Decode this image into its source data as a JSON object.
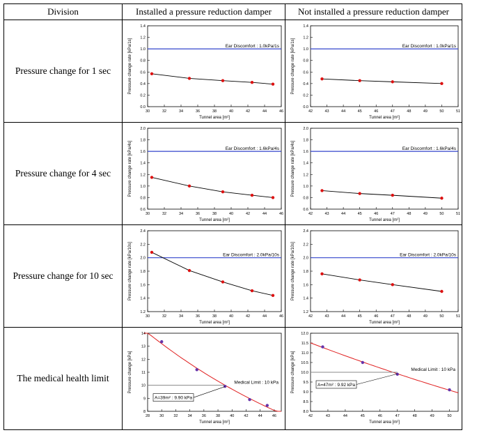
{
  "table": {
    "headers": [
      "Division",
      "Installed a pressure reduction damper",
      "Not installed a pressure reduction damper"
    ],
    "rows": [
      "Pressure change for 1 sec",
      "Pressure change for 4 sec",
      "Pressure change for 10 sec",
      "The medical health limit"
    ]
  },
  "chart_data": [
    {
      "id": "r1c1",
      "type": "scatter",
      "xlabel": "Tunnel area [m²]",
      "ylabel": "Pressure change rate [kPa/1s]",
      "xlim": [
        30,
        46
      ],
      "ylim": [
        0.0,
        1.4
      ],
      "xticks": [
        30,
        32,
        34,
        36,
        38,
        40,
        42,
        44,
        46
      ],
      "yticks": [
        0.0,
        0.2,
        0.4,
        0.6,
        0.8,
        1.0,
        1.2,
        1.4
      ],
      "x": [
        30.5,
        35.0,
        39.0,
        42.5,
        45.0
      ],
      "y": [
        0.57,
        0.49,
        0.45,
        0.42,
        0.39
      ],
      "limit": 1.0,
      "limit_label": "Ear Discomfort : 1.0kPa/1s"
    },
    {
      "id": "r1c2",
      "type": "scatter",
      "xlabel": "Tunnel area [m²]",
      "ylabel": "Pressure change rate [kPa/1s]",
      "xlim": [
        42,
        51
      ],
      "ylim": [
        0.0,
        1.4
      ],
      "xticks": [
        42,
        43,
        44,
        45,
        46,
        47,
        48,
        49,
        50,
        51
      ],
      "yticks": [
        0.0,
        0.2,
        0.4,
        0.6,
        0.8,
        1.0,
        1.2,
        1.4
      ],
      "x": [
        42.7,
        45.0,
        47.0,
        50.0
      ],
      "y": [
        0.48,
        0.45,
        0.43,
        0.4
      ],
      "limit": 1.0,
      "limit_label": "Ear Discomfort : 1.0kPa/1s"
    },
    {
      "id": "r2c1",
      "type": "scatter",
      "xlabel": "Tunnel area [m²]",
      "ylabel": "Pressure change rate [kPa/4s]",
      "xlim": [
        30,
        46
      ],
      "ylim": [
        0.6,
        2.0
      ],
      "xticks": [
        30,
        32,
        34,
        36,
        38,
        40,
        42,
        44,
        46
      ],
      "yticks": [
        0.6,
        0.8,
        1.0,
        1.2,
        1.4,
        1.6,
        1.8,
        2.0
      ],
      "x": [
        30.5,
        35.0,
        39.0,
        42.5,
        45.0
      ],
      "y": [
        1.15,
        1.0,
        0.9,
        0.84,
        0.8
      ],
      "limit": 1.6,
      "limit_label": "Ear Discomfort : 1.6kPa/4s"
    },
    {
      "id": "r2c2",
      "type": "scatter",
      "xlabel": "Tunnel area [m²]",
      "ylabel": "Pressure change rate [kPa/4s]",
      "xlim": [
        42,
        51
      ],
      "ylim": [
        0.6,
        2.0
      ],
      "xticks": [
        42,
        43,
        44,
        45,
        46,
        47,
        48,
        49,
        50,
        51
      ],
      "yticks": [
        0.6,
        0.8,
        1.0,
        1.2,
        1.4,
        1.6,
        1.8,
        2.0
      ],
      "x": [
        42.7,
        45.0,
        47.0,
        50.0
      ],
      "y": [
        0.92,
        0.87,
        0.84,
        0.79
      ],
      "limit": 1.6,
      "limit_label": "Ear Discomfort : 1.6kPa/4s"
    },
    {
      "id": "r3c1",
      "type": "scatter",
      "xlabel": "Tunnel area [m²]",
      "ylabel": "Pressure change rate [kPa/10s]",
      "xlim": [
        30,
        46
      ],
      "ylim": [
        1.2,
        2.4
      ],
      "xticks": [
        30,
        32,
        34,
        36,
        38,
        40,
        42,
        44,
        46
      ],
      "yticks": [
        1.2,
        1.4,
        1.6,
        1.8,
        2.0,
        2.2,
        2.4
      ],
      "x": [
        30.5,
        35.0,
        39.0,
        42.5,
        45.0
      ],
      "y": [
        2.08,
        1.81,
        1.64,
        1.51,
        1.44
      ],
      "limit": 2.0,
      "limit_label": "Ear Discomfort : 2.0kPa/10s"
    },
    {
      "id": "r3c2",
      "type": "scatter",
      "xlabel": "Tunnel area [m²]",
      "ylabel": "Pressure change rate [kPa/10s]",
      "xlim": [
        42,
        51
      ],
      "ylim": [
        1.2,
        2.4
      ],
      "xticks": [
        42,
        43,
        44,
        45,
        46,
        47,
        48,
        49,
        50,
        51
      ],
      "yticks": [
        1.2,
        1.4,
        1.6,
        1.8,
        2.0,
        2.2,
        2.4
      ],
      "x": [
        42.7,
        45.0,
        47.0,
        50.0
      ],
      "y": [
        1.76,
        1.67,
        1.6,
        1.5
      ],
      "limit": 2.0,
      "limit_label": "Ear Discomfort : 2.0kPa/10s"
    },
    {
      "id": "r4c1",
      "type": "scatter",
      "xlabel": "Tunnel area [m²]",
      "ylabel": "Pressure change [kPa]",
      "xlim": [
        28,
        47
      ],
      "ylim": [
        8,
        14
      ],
      "xticks": [
        28,
        30,
        32,
        34,
        36,
        38,
        40,
        42,
        44,
        46
      ],
      "yticks": [
        8,
        9,
        10,
        11,
        12,
        13,
        14
      ],
      "x": [
        30.0,
        35.0,
        39.0,
        42.5,
        45.0
      ],
      "y": [
        13.35,
        11.2,
        9.92,
        8.9,
        8.45
      ],
      "curve_x": [
        27.5,
        47.0
      ],
      "limit": 10.0,
      "limit_label": "Medical Limit : 10 kPa",
      "callout": "A=39m² : 9.90 kPa",
      "callout_x": 39.0,
      "callout_y": 9.9
    },
    {
      "id": "r4c2",
      "type": "scatter",
      "xlabel": "Tunnel area [m²]",
      "ylabel": "Pressure change [kPa]",
      "xlim": [
        42,
        50.5
      ],
      "ylim": [
        8.0,
        12.0
      ],
      "xticks": [
        42,
        43,
        44,
        45,
        46,
        47,
        48,
        49,
        50
      ],
      "yticks": [
        8.0,
        8.5,
        9.0,
        9.5,
        10.0,
        10.5,
        11.0,
        11.5,
        12.0
      ],
      "x": [
        42.7,
        45.0,
        47.0,
        50.0
      ],
      "y": [
        11.3,
        10.5,
        9.9,
        9.1
      ],
      "curve_x": [
        42.0,
        50.5
      ],
      "limit": 10.0,
      "limit_label": "Medical Limit : 10 kPa",
      "callout": "A=47m² : 9.92 kPa",
      "callout_x": 47.0,
      "callout_y": 9.92
    }
  ]
}
